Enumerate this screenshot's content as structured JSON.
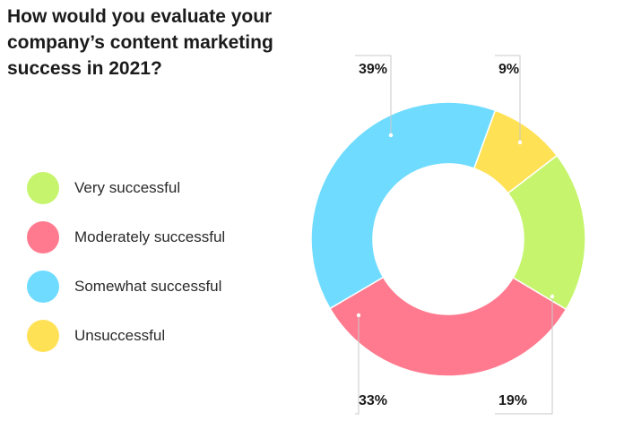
{
  "chart_data": {
    "type": "pie",
    "title": "How would you evaluate your company’s content marketing success in 2021?",
    "categories": [
      "Very successful",
      "Moderately successful",
      "Somewhat successful",
      "Unsuccessful"
    ],
    "values": [
      19,
      33,
      39,
      9
    ],
    "labels": [
      "19%",
      "33%",
      "39%",
      "9%"
    ],
    "colors": [
      "#c6f56d",
      "#ff7a8e",
      "#6fdcff",
      "#ffe155"
    ],
    "legend_position": "left"
  }
}
